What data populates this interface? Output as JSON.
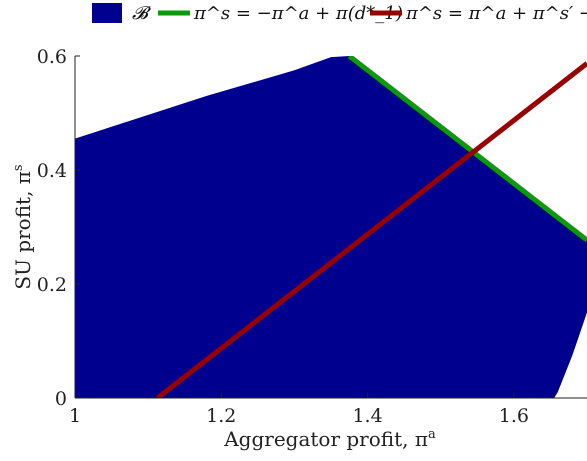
{
  "chart_data": {
    "type": "area",
    "xlabel": "Aggregator profit, π",
    "xlabel_sup": "a",
    "ylabel": "SU profit, π",
    "ylabel_sup": "s",
    "xlim": [
      1,
      1.7
    ],
    "ylim": [
      0,
      0.6
    ],
    "xticks": [
      1,
      1.2,
      1.4,
      1.6
    ],
    "xtick_labels": [
      "1",
      "1.2",
      "1.4",
      "1.6"
    ],
    "yticks": [
      0,
      0.2,
      0.4,
      0.6
    ],
    "ytick_labels": [
      "0",
      "0.2",
      "0.4",
      "0.6"
    ],
    "legend_position": "top",
    "series": [
      {
        "name": "𝓑",
        "kind": "region",
        "color": "#00008f",
        "points": [
          [
            1.0,
            0.0
          ],
          [
            1.0,
            0.455
          ],
          [
            1.18,
            0.53
          ],
          [
            1.3,
            0.575
          ],
          [
            1.35,
            0.598
          ],
          [
            1.375,
            0.6
          ],
          [
            1.7,
            0.277
          ],
          [
            1.7,
            0.15
          ],
          [
            1.68,
            0.075
          ],
          [
            1.66,
            0.01
          ],
          [
            1.655,
            0.0
          ]
        ]
      },
      {
        "name": "π^s = −π^a + π(d*_1)",
        "kind": "line",
        "color": "#0a9a0a",
        "points": [
          [
            1.375,
            0.6
          ],
          [
            1.7,
            0.277
          ]
        ]
      },
      {
        "name": "π^s = π^a + π^s′ − π^a′",
        "kind": "line",
        "color": "#990000",
        "points": [
          [
            1.113,
            0.0
          ],
          [
            1.7,
            0.587
          ]
        ]
      }
    ]
  }
}
